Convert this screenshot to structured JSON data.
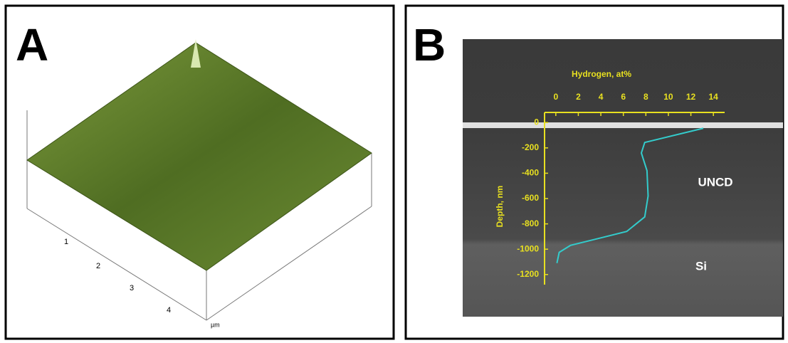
{
  "panel_a": {
    "label": "A",
    "ticks": [
      "1",
      "2",
      "3",
      "4"
    ],
    "unit": "µm"
  },
  "panel_b": {
    "label": "B"
  },
  "chart_data": {
    "type": "line",
    "x_label": "Hydrogen, at%",
    "y_label": "Depth, nm",
    "x": [
      13.1,
      7.9,
      7.6,
      8.1,
      8.2,
      7.9,
      6.3,
      3.8,
      1.3,
      0.3,
      0.1
    ],
    "values": [
      -45,
      -157,
      -240,
      -380,
      -580,
      -745,
      -860,
      -915,
      -970,
      -1025,
      -1110
    ],
    "color": "#33cccc",
    "axis_color": "#e8e020",
    "xlim": [
      -1,
      15
    ],
    "xticks": [
      0,
      2,
      4,
      6,
      8,
      10,
      12,
      14
    ],
    "ylim": [
      -1280,
      80
    ],
    "yticks": [
      0,
      -200,
      -400,
      -600,
      -800,
      -1000,
      -1200
    ],
    "annotations": [
      "UNCD",
      "Si"
    ]
  }
}
